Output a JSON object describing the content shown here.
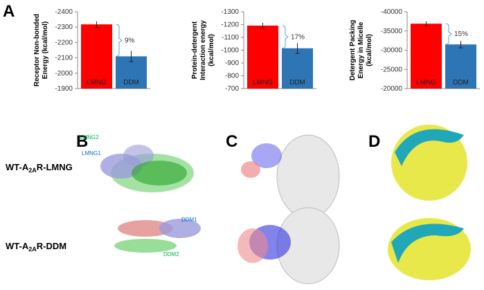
{
  "chart_data": [
    {
      "type": "bar",
      "ylabel": [
        "Receptor Non-bonded",
        "Energy (kcal/mol)"
      ],
      "categories": [
        "LMNG",
        "DDM"
      ],
      "values": [
        -2318,
        -2110
      ],
      "errors": [
        20,
        35
      ],
      "colors": [
        "#ff0000",
        "#2e75b6"
      ],
      "ylim": [
        -1900,
        -2400
      ],
      "yticks": [
        -1900,
        -2000,
        -2100,
        -2200,
        -2300,
        -2400
      ],
      "annotation": "9%"
    },
    {
      "type": "bar",
      "ylabel": [
        "Protein-detergent",
        "Interaction energy",
        "(kcal/mol)"
      ],
      "categories": [
        "LMNG",
        "DDM"
      ],
      "values": [
        -1192,
        -1015
      ],
      "errors": [
        22,
        40
      ],
      "colors": [
        "#ff0000",
        "#2e75b6"
      ],
      "ylim": [
        -700,
        -1300
      ],
      "yticks": [
        -700,
        -800,
        -900,
        -1000,
        -1100,
        -1200,
        -1300
      ],
      "annotation": "17%"
    },
    {
      "type": "bar",
      "ylabel": [
        "Detergent Packing",
        "Energy in Micelle",
        "(kcal/mol)"
      ],
      "categories": [
        "LMNG",
        "DDM"
      ],
      "values": [
        -36900,
        -31500
      ],
      "errors": [
        600,
        900
      ],
      "colors": [
        "#ff0000",
        "#2e75b6"
      ],
      "ylim": [
        -20000,
        -40000
      ],
      "yticks": [
        -20000,
        -25000,
        -30000,
        -35000,
        -40000
      ],
      "annotation": "15%"
    }
  ],
  "figure": {
    "panel_labels": [
      "A",
      "B",
      "C",
      "D"
    ],
    "rows": [
      {
        "label_parts": [
          "WT-A",
          "2A",
          "R-LMNG"
        ]
      },
      {
        "label_parts": [
          "WT-A",
          "2A",
          "R-DDM"
        ]
      }
    ],
    "molecule_labels": [
      "LMNG2",
      "LMNG1",
      "DDM1",
      "DDM2"
    ]
  }
}
